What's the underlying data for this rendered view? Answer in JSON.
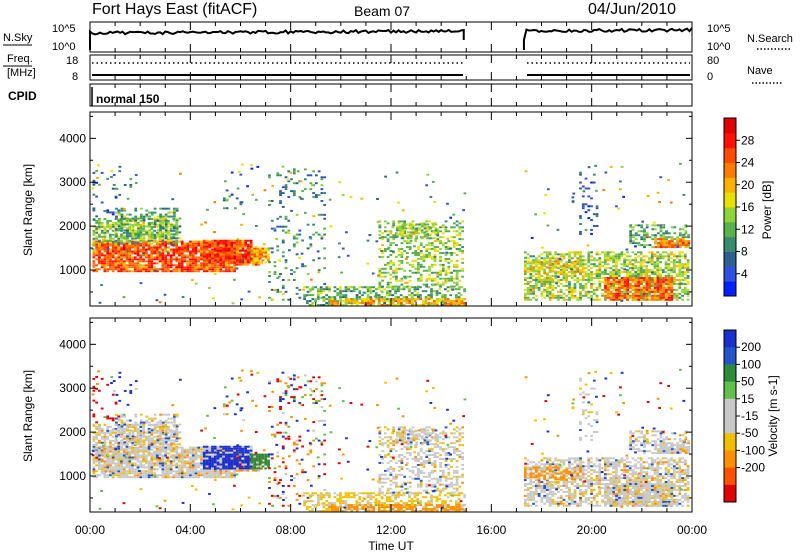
{
  "header": {
    "station": "Fort Hays East (fitACF)",
    "beam": "Beam 07",
    "date": "04/Jun/2010"
  },
  "sky_panel": {
    "left_label": "N.Sky",
    "left_ticks": [
      "10^5",
      "10^0"
    ],
    "right_ticks": [
      "10^5",
      "10^0"
    ],
    "right_label": "N.Search"
  },
  "freq_panel": {
    "left_label_line1": "Freq.",
    "left_label_line2": "[MHz]",
    "left_ticks": [
      "18",
      "8"
    ],
    "right_ticks": [
      "80",
      "0"
    ],
    "right_label": "Nave"
  },
  "cpid_panel": {
    "left_label": "CPID",
    "program": "normal 150"
  },
  "chart_data": [
    {
      "type": "heatmap",
      "name": "power",
      "xlabel": "",
      "ylabel": "Slant Range [km]",
      "x_ticks": [
        "00:00",
        "04:00",
        "08:00",
        "12:00",
        "16:00",
        "20:00",
        "00:00"
      ],
      "x_range_hours": [
        0,
        24
      ],
      "yticks": [
        1000,
        2000,
        3000,
        4000
      ],
      "ylim": [
        180,
        4600
      ],
      "colorbar": {
        "label": "Power [dB]",
        "ticks": [
          4,
          8,
          12,
          16,
          20,
          24,
          28
        ],
        "range": [
          0,
          32
        ],
        "colors": [
          "#0020ff",
          "#2f4fe0",
          "#2d5f8f",
          "#3a8a6e",
          "#59b04e",
          "#8fd33a",
          "#e8e000",
          "#ffb000",
          "#ff7a00",
          "#ff4a00",
          "#ff1000",
          "#e00000"
        ]
      },
      "data_gap_hours": [
        14.9,
        17.3
      ]
    },
    {
      "type": "heatmap",
      "name": "velocity",
      "xlabel": "Time UT",
      "ylabel": "Slant Range [km]",
      "x_ticks": [
        "00:00",
        "04:00",
        "08:00",
        "12:00",
        "16:00",
        "20:00",
        "00:00"
      ],
      "x_range_hours": [
        0,
        24
      ],
      "yticks": [
        1000,
        2000,
        3000,
        4000
      ],
      "ylim": [
        180,
        4600
      ],
      "colorbar": {
        "label": "Velocity [m s-1]",
        "ticks": [
          "200",
          "100",
          "50",
          "15",
          "-15",
          "-50",
          "-100",
          "-200"
        ],
        "colors": [
          "#1a2fd0",
          "#2255c8",
          "#2d8a3a",
          "#5fc04a",
          "#c8c8c8",
          "#c8c8c8",
          "#f0c000",
          "#ff9000",
          "#ff5000",
          "#e00000"
        ]
      },
      "data_gap_hours": [
        14.9,
        17.3
      ]
    }
  ]
}
